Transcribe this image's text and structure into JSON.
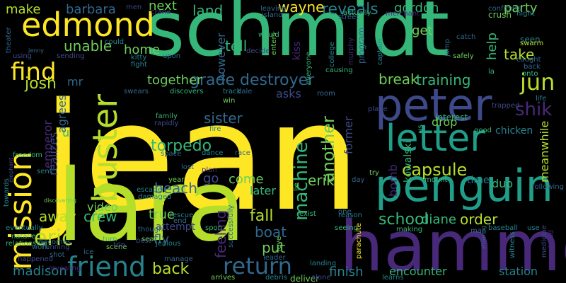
{
  "background": "#000000",
  "palette": [
    "#fde725",
    "#b5de2b",
    "#6ece58",
    "#35b779",
    "#1f9e89",
    "#26828e",
    "#31688e",
    "#3e4989",
    "#482878",
    "#440154"
  ],
  "words": [
    {
      "text": "jean",
      "color": "#fde725"
    },
    {
      "text": "schmidt",
      "color": "#35b779"
    },
    {
      "text": "lara",
      "color": "#b5de2b"
    },
    {
      "text": "hammer",
      "color": "#482878"
    },
    {
      "text": "penguin",
      "color": "#1f9e89"
    },
    {
      "text": "peter",
      "color": "#3e4989"
    },
    {
      "text": "letter",
      "color": "#1f9e89"
    },
    {
      "text": "edmond",
      "color": "#fde725"
    },
    {
      "text": "mission",
      "color": "#fde725"
    },
    {
      "text": "buster",
      "color": "#b5de2b"
    },
    {
      "text": "friend",
      "color": "#26828e"
    },
    {
      "text": "return",
      "color": "#31688e"
    },
    {
      "text": "find",
      "color": "#fde725"
    },
    {
      "text": "eric",
      "color": "#b5de2b"
    },
    {
      "text": "jun",
      "color": "#b5de2b"
    },
    {
      "text": "shik",
      "color": "#482878"
    },
    {
      "text": "grade destroyer",
      "color": "#31688e"
    },
    {
      "text": "capsule",
      "color": "#b5de2b"
    },
    {
      "text": "machine",
      "color": "#35b779"
    },
    {
      "text": "another",
      "color": "#6ece58"
    },
    {
      "text": "torpedo",
      "color": "#35b779"
    },
    {
      "text": "beach",
      "color": "#31688e"
    },
    {
      "text": "back",
      "color": "#b5de2b"
    },
    {
      "text": "away",
      "color": "#b5de2b"
    },
    {
      "text": "crew",
      "color": "#35b779"
    },
    {
      "text": "school",
      "color": "#35b779"
    },
    {
      "text": "order",
      "color": "#b5de2b"
    },
    {
      "text": "diane",
      "color": "#35b779"
    },
    {
      "text": "fall",
      "color": "#b5de2b"
    },
    {
      "text": "boat",
      "color": "#31688e"
    },
    {
      "text": "put",
      "color": "#6ece58"
    },
    {
      "text": "feeling",
      "color": "#482878"
    },
    {
      "text": "erik",
      "color": "#6ece58"
    },
    {
      "text": "later",
      "color": "#35b779"
    },
    {
      "text": "come",
      "color": "#6ece58"
    },
    {
      "text": "go",
      "color": "#3e4989"
    },
    {
      "text": "sister",
      "color": "#31688e"
    },
    {
      "text": "together",
      "color": "#6ece58"
    },
    {
      "text": "training",
      "color": "#35b779"
    },
    {
      "text": "break",
      "color": "#6ece58"
    },
    {
      "text": "reveals",
      "color": "#26828e"
    },
    {
      "text": "gordon",
      "color": "#35b779"
    },
    {
      "text": "party",
      "color": "#6ece58"
    },
    {
      "text": "get",
      "color": "#6ece58"
    },
    {
      "text": "take",
      "color": "#b5de2b"
    },
    {
      "text": "help",
      "color": "#35b779"
    },
    {
      "text": "wayne",
      "color": "#fde725"
    },
    {
      "text": "land",
      "color": "#35b779"
    },
    {
      "text": "tell",
      "color": "#35b779"
    },
    {
      "text": "home",
      "color": "#6ece58"
    },
    {
      "text": "unable",
      "color": "#6ece58"
    },
    {
      "text": "barbara",
      "color": "#31688e"
    },
    {
      "text": "make",
      "color": "#b5de2b"
    },
    {
      "text": "next",
      "color": "#6ece58"
    },
    {
      "text": "however",
      "color": "#31688e"
    },
    {
      "text": "josh",
      "color": "#b5de2b"
    },
    {
      "text": "mr",
      "color": "#31688e"
    },
    {
      "text": "emperor",
      "color": "#482878"
    },
    {
      "text": "realizes",
      "color": "#3e4989"
    },
    {
      "text": "agrees",
      "color": "#31688e"
    },
    {
      "text": "u",
      "color": "#35b779"
    },
    {
      "text": "video",
      "color": "#6ece58"
    },
    {
      "text": "true",
      "color": "#6ece58"
    },
    {
      "text": "madison",
      "color": "#26828e"
    },
    {
      "text": "finish",
      "color": "#26828e"
    },
    {
      "text": "encounter",
      "color": "#35b779"
    },
    {
      "text": "station",
      "color": "#26828e"
    },
    {
      "text": "duo",
      "color": "#35b779"
    },
    {
      "text": "meanwhile",
      "color": "#b5de2b"
    },
    {
      "text": "bomb",
      "color": "#482878"
    },
    {
      "text": "kowalski",
      "color": "#35b779"
    },
    {
      "text": "former",
      "color": "#3e4989"
    },
    {
      "text": "drop",
      "color": "#6ece58"
    },
    {
      "text": "chicken",
      "color": "#26828e"
    },
    {
      "text": "interest",
      "color": "#35b779"
    },
    {
      "text": "asks",
      "color": "#3e4989"
    },
    {
      "text": "kiss",
      "color": "#482878"
    },
    {
      "text": "program",
      "color": "#31688e"
    },
    {
      "text": "fly",
      "color": "#31688e"
    },
    {
      "text": "attempt",
      "color": "#3e4989"
    },
    {
      "text": "escape",
      "color": "#26828e"
    },
    {
      "text": "damaged",
      "color": "#26828e"
    },
    {
      "text": "though",
      "color": "#31688e"
    },
    {
      "text": "manage",
      "color": "#31688e"
    },
    {
      "text": "jealous",
      "color": "#26828e"
    },
    {
      "text": "arrives",
      "color": "#6ece58"
    },
    {
      "text": "debris",
      "color": "#26828e"
    },
    {
      "text": "deliver",
      "color": "#6ece58"
    },
    {
      "text": "alone",
      "color": "#3e4989"
    },
    {
      "text": "learns",
      "color": "#26828e"
    },
    {
      "text": "landing",
      "color": "#26828e"
    },
    {
      "text": "leader",
      "color": "#31688e"
    },
    {
      "text": "successfully",
      "color": "#31688e"
    },
    {
      "text": "love",
      "color": "#6ece58"
    },
    {
      "text": "lie",
      "color": "#6ece58"
    },
    {
      "text": "exist",
      "color": "#35b779"
    },
    {
      "text": "seeing",
      "color": "#35b779"
    },
    {
      "text": "making",
      "color": "#35b779"
    },
    {
      "text": "reason",
      "color": "#26828e"
    },
    {
      "text": "one",
      "color": "#31688e"
    },
    {
      "text": "man",
      "color": "#31688e"
    },
    {
      "text": "baseball",
      "color": "#26828e"
    },
    {
      "text": "use",
      "color": "#26828e"
    },
    {
      "text": "witness",
      "color": "#26828e"
    },
    {
      "text": "medicine",
      "color": "#3e4989"
    },
    {
      "text": "showing",
      "color": "#31688e"
    },
    {
      "text": "hand",
      "color": "#482878"
    },
    {
      "text": "elephant",
      "color": "#3e4989"
    },
    {
      "text": "relationship",
      "color": "#35b779"
    },
    {
      "text": "natalie",
      "color": "#35b779"
    },
    {
      "text": "work",
      "color": "#31688e"
    },
    {
      "text": "becomes",
      "color": "#31688e"
    },
    {
      "text": "theater",
      "color": "#31688e"
    },
    {
      "text": "using",
      "color": "#3e4989"
    },
    {
      "text": "sending",
      "color": "#3e4989"
    },
    {
      "text": "running",
      "color": "#3e4989"
    },
    {
      "text": "discovering",
      "color": "#6ece58"
    },
    {
      "text": "jenny",
      "color": "#31688e"
    },
    {
      "text": "scene",
      "color": "#6ece58"
    },
    {
      "text": "swears",
      "color": "#31688e"
    },
    {
      "text": "fight",
      "color": "#26828e"
    },
    {
      "text": "kitty",
      "color": "#26828e"
    },
    {
      "text": "could",
      "color": "#26828e"
    },
    {
      "text": "upon",
      "color": "#31688e"
    },
    {
      "text": "crane",
      "color": "#3e4989"
    },
    {
      "text": "leaving",
      "color": "#31688e"
    },
    {
      "text": "island",
      "color": "#31688e"
    },
    {
      "text": "would",
      "color": "#35b779"
    },
    {
      "text": "decide",
      "color": "#3e4989"
    },
    {
      "text": "actually",
      "color": "#35b779"
    },
    {
      "text": "street",
      "color": "#31688e"
    },
    {
      "text": "merchant",
      "color": "#482878"
    },
    {
      "text": "confronts",
      "color": "#31688e"
    },
    {
      "text": "crush",
      "color": "#6ece58"
    },
    {
      "text": "night",
      "color": "#26828e"
    },
    {
      "text": "seen",
      "color": "#26828e"
    },
    {
      "text": "swarm",
      "color": "#b5de2b"
    },
    {
      "text": "caught",
      "color": "#31688e"
    },
    {
      "text": "back",
      "color": "#31688e"
    },
    {
      "text": "onto",
      "color": "#35b779"
    },
    {
      "text": "life",
      "color": "#26828e"
    },
    {
      "text": "trapped",
      "color": "#3e4989"
    },
    {
      "text": "plane",
      "color": "#3e4989"
    },
    {
      "text": "la",
      "color": "#35b779"
    },
    {
      "text": "catch",
      "color": "#31688e"
    },
    {
      "text": "safely",
      "color": "#6ece58"
    },
    {
      "text": "jump",
      "color": "#31688e"
    },
    {
      "text": "captain",
      "color": "#26828e"
    },
    {
      "text": "murphy",
      "color": "#482878"
    },
    {
      "text": "college",
      "color": "#26828e"
    },
    {
      "text": "causing",
      "color": "#35b779"
    },
    {
      "text": "everyone",
      "color": "#35b779"
    },
    {
      "text": "room",
      "color": "#31688e"
    },
    {
      "text": "dale",
      "color": "#31688e"
    },
    {
      "text": "track",
      "color": "#26828e"
    },
    {
      "text": "discovers",
      "color": "#35b779"
    },
    {
      "text": "win",
      "color": "#6ece58"
    },
    {
      "text": "enters",
      "color": "#6ece58"
    },
    {
      "text": "family",
      "color": "#35b779"
    },
    {
      "text": "rapidly",
      "color": "#3e4989"
    },
    {
      "text": "fire",
      "color": "#26828e"
    },
    {
      "text": "dance",
      "color": "#26828e"
    },
    {
      "text": "race",
      "color": "#31688e"
    },
    {
      "text": "space",
      "color": "#31688e"
    },
    {
      "text": "lost",
      "color": "#31688e"
    },
    {
      "text": "plan",
      "color": "#482878"
    },
    {
      "text": "year",
      "color": "#6ece58"
    },
    {
      "text": "rescue",
      "color": "#26828e"
    },
    {
      "text": "end",
      "color": "#31688e"
    },
    {
      "text": "spon",
      "color": "#35b779"
    },
    {
      "text": "freedom",
      "color": "#35b779"
    },
    {
      "text": "towards",
      "color": "#26828e"
    },
    {
      "text": "sent",
      "color": "#26828e"
    },
    {
      "text": "eventually",
      "color": "#26828e"
    },
    {
      "text": "happened",
      "color": "#3e4989"
    },
    {
      "text": "shot",
      "color": "#31688e"
    },
    {
      "text": "revealing",
      "color": "#482878"
    },
    {
      "text": "ice",
      "color": "#31688e"
    },
    {
      "text": "turn",
      "color": "#35b779"
    },
    {
      "text": "trip",
      "color": "#3e4989"
    },
    {
      "text": "best",
      "color": "#3e4989"
    },
    {
      "text": "seal",
      "color": "#6ece58"
    },
    {
      "text": "good",
      "color": "#35b779"
    },
    {
      "text": "us",
      "color": "#35b779"
    },
    {
      "text": "try",
      "color": "#6ece58"
    },
    {
      "text": "day",
      "color": "#31688e"
    },
    {
      "text": "mount",
      "color": "#35b779"
    },
    {
      "text": "time",
      "color": "#26828e"
    },
    {
      "text": "following",
      "color": "#31688e"
    },
    {
      "text": "parachute",
      "color": "#fde725"
    },
    {
      "text": "men",
      "color": "#3e4989"
    },
    {
      "text": "reggie",
      "color": "#3e4989"
    },
    {
      "text": "ex",
      "color": "#31688e"
    }
  ]
}
